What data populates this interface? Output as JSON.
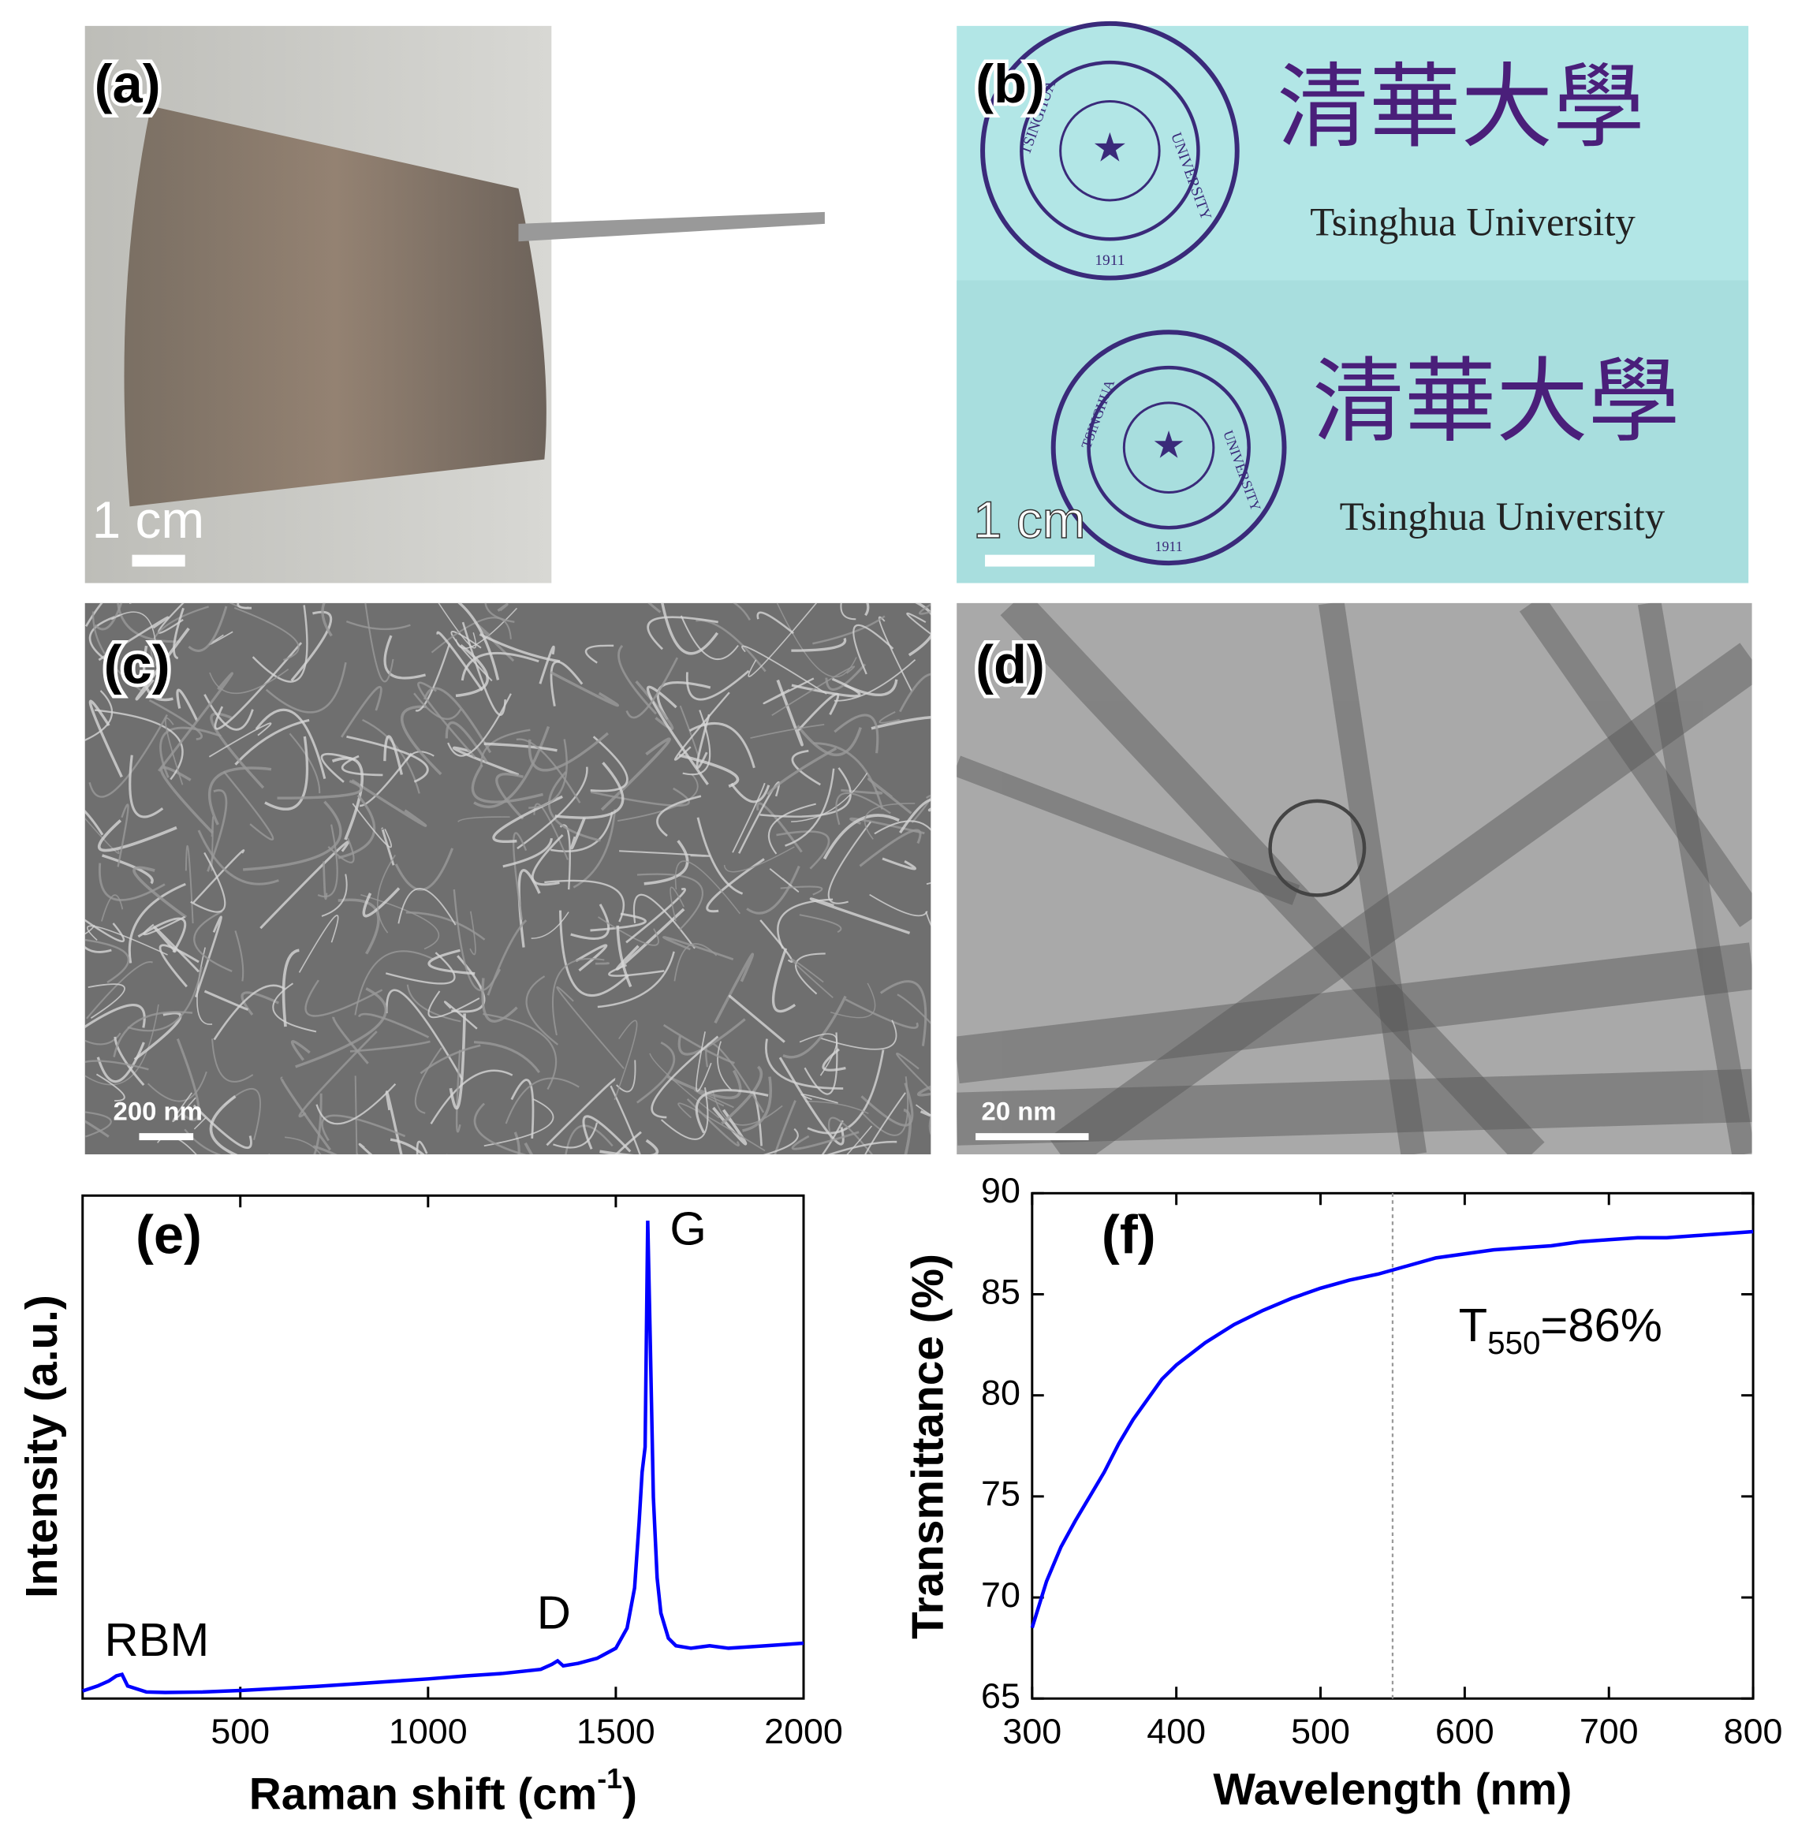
{
  "panels": {
    "a": {
      "label": "(a)",
      "scale_bar": "1 cm"
    },
    "b": {
      "label": "(b)",
      "scale_bar": "1 cm",
      "chinese": "清華大學",
      "english": "Tsinghua University",
      "seal_top": "TSINGHUA",
      "seal_right": "UNIVERSITY",
      "seal_year": "1911"
    },
    "c": {
      "label": "(c)",
      "scale_bar": "200 nm"
    },
    "d": {
      "label": "(d)",
      "scale_bar": "20 nm"
    }
  },
  "chart_data": [
    {
      "type": "line",
      "label": "(e)",
      "xlabel_parts": [
        "Raman shift (cm",
        "-1",
        ")"
      ],
      "ylabel": "Intensity (a.u.)",
      "annotations": [
        "RBM",
        "D",
        "G"
      ],
      "x": [
        80,
        120,
        150,
        170,
        185,
        200,
        250,
        300,
        400,
        500,
        600,
        700,
        800,
        900,
        1000,
        1100,
        1200,
        1300,
        1330,
        1345,
        1360,
        1400,
        1450,
        1500,
        1530,
        1550,
        1562,
        1570,
        1578,
        1585,
        1592,
        1600,
        1610,
        1620,
        1640,
        1660,
        1700,
        1750,
        1800,
        1900,
        2000
      ],
      "series": [
        {
          "color": "#0000ff",
          "values": [
            1.5,
            2.5,
            3.5,
            4.5,
            4.8,
            2.5,
            1.3,
            1.2,
            1.3,
            1.6,
            2.0,
            2.4,
            2.9,
            3.4,
            3.9,
            4.5,
            5.0,
            5.8,
            6.8,
            7.5,
            6.5,
            7.0,
            8.0,
            10.0,
            14,
            22,
            35,
            45,
            50,
            95,
            70,
            40,
            24,
            17,
            12,
            10.5,
            10,
            10.5,
            10,
            10.5,
            11
          ]
        }
      ],
      "xlim": [
        80,
        2000
      ],
      "ylim": [
        0,
        100
      ],
      "xticks": [
        500,
        1000,
        1500,
        2000
      ]
    },
    {
      "type": "line",
      "label": "(f)",
      "xlabel": "Wavelength (nm)",
      "ylabel": "Transmittance (%)",
      "annotation_parts": [
        "T",
        "550",
        "=86%"
      ],
      "vline": 550,
      "x": [
        300,
        310,
        320,
        330,
        340,
        350,
        360,
        370,
        380,
        390,
        400,
        420,
        440,
        460,
        480,
        500,
        520,
        540,
        550,
        560,
        580,
        600,
        620,
        640,
        660,
        680,
        700,
        720,
        740,
        760,
        780,
        800
      ],
      "series": [
        {
          "color": "#0000ff",
          "values": [
            68.5,
            70.8,
            72.5,
            73.8,
            75.0,
            76.2,
            77.6,
            78.8,
            79.8,
            80.8,
            81.5,
            82.6,
            83.5,
            84.2,
            84.8,
            85.3,
            85.7,
            86.0,
            86.2,
            86.4,
            86.8,
            87.0,
            87.2,
            87.3,
            87.4,
            87.6,
            87.7,
            87.8,
            87.8,
            87.9,
            88.0,
            88.1
          ]
        }
      ],
      "xlim": [
        300,
        800
      ],
      "ylim": [
        65,
        90
      ],
      "xticks": [
        300,
        400,
        500,
        600,
        700,
        800
      ],
      "yticks": [
        65,
        70,
        75,
        80,
        85,
        90
      ]
    }
  ]
}
